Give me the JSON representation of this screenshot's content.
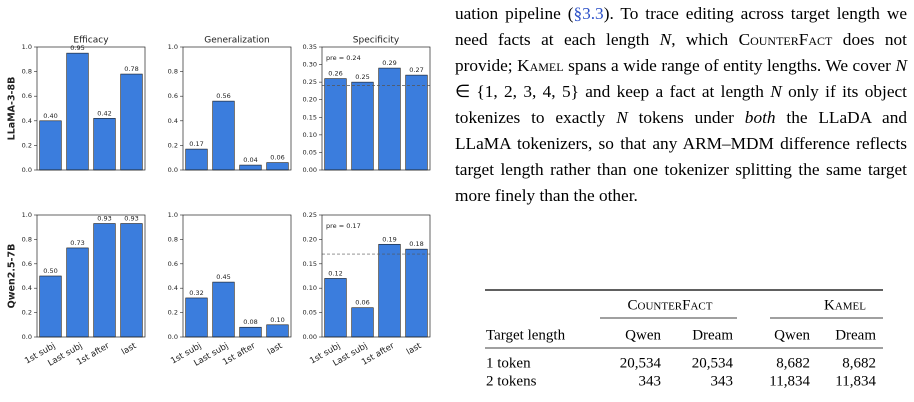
{
  "chart_data": [
    {
      "type": "bar",
      "title": "Efficacy",
      "ylabel": "LLaMA-3-8B",
      "categories": [
        null,
        null,
        null,
        null
      ],
      "values": [
        0.4,
        0.95,
        0.42,
        0.78
      ],
      "value_labels": [
        "0.40",
        "0.95",
        "0.42",
        "0.78"
      ],
      "color": "#3b7ddd",
      "ylim": [
        0,
        1.0
      ],
      "yticks": [
        {
          "value": 0,
          "label": "0.0"
        },
        {
          "value": 0.2,
          "label": "0.2"
        },
        {
          "value": 0.4,
          "label": "0.4"
        },
        {
          "value": 0.6,
          "label": "0.6"
        },
        {
          "value": 0.8,
          "label": "0.8"
        },
        {
          "value": 1.0,
          "label": "1.0"
        }
      ]
    },
    {
      "type": "bar",
      "title": "Generalization",
      "categories": [
        null,
        null,
        null,
        null
      ],
      "values": [
        0.17,
        0.56,
        0.04,
        0.06
      ],
      "value_labels": [
        "0.17",
        "0.56",
        "0.04",
        "0.06"
      ],
      "color": "#3b7ddd",
      "ylim": [
        0,
        1.0
      ],
      "yticks": [
        {
          "value": 0,
          "label": "0.0"
        },
        {
          "value": 0.2,
          "label": "0.2"
        },
        {
          "value": 0.4,
          "label": "0.4"
        },
        {
          "value": 0.6,
          "label": "0.6"
        },
        {
          "value": 0.8,
          "label": "0.8"
        },
        {
          "value": 1.0,
          "label": "1.0"
        }
      ]
    },
    {
      "type": "bar",
      "title": "Specificity",
      "categories": [
        null,
        null,
        null,
        null
      ],
      "values": [
        0.26,
        0.25,
        0.29,
        0.27
      ],
      "value_labels": [
        "0.26",
        "0.25",
        "0.29",
        "0.27"
      ],
      "color": "#3b7ddd",
      "ylim": [
        0,
        0.35
      ],
      "yticks": [
        {
          "value": 0,
          "label": "0.00"
        },
        {
          "value": 0.05,
          "label": "0.05"
        },
        {
          "value": 0.1,
          "label": "0.10"
        },
        {
          "value": 0.15,
          "label": "0.15"
        },
        {
          "value": 0.2,
          "label": "0.20"
        },
        {
          "value": 0.25,
          "label": "0.25"
        },
        {
          "value": 0.3,
          "label": "0.30"
        },
        {
          "value": 0.35,
          "label": "0.35"
        }
      ],
      "reference": {
        "value": 0.24,
        "label": "pre = 0.24"
      }
    },
    {
      "type": "bar",
      "ylabel": "Qwen2.5-7B",
      "categories": [
        "1st subj",
        "Last subj",
        "1st after",
        "last"
      ],
      "values": [
        0.5,
        0.73,
        0.93,
        0.93
      ],
      "value_labels": [
        "0.50",
        "0.73",
        "0.93",
        "0.93"
      ],
      "color": "#3b7ddd",
      "ylim": [
        0,
        1.0
      ],
      "yticks": [
        {
          "value": 0,
          "label": "0.0"
        },
        {
          "value": 0.2,
          "label": "0.2"
        },
        {
          "value": 0.4,
          "label": "0.4"
        },
        {
          "value": 0.6,
          "label": "0.6"
        },
        {
          "value": 0.8,
          "label": "0.8"
        },
        {
          "value": 1.0,
          "label": "1.0"
        }
      ]
    },
    {
      "type": "bar",
      "categories": [
        "1st subj",
        "Last subj",
        "1st after",
        "last"
      ],
      "values": [
        0.32,
        0.45,
        0.08,
        0.1
      ],
      "value_labels": [
        "0.32",
        "0.45",
        "0.08",
        "0.10"
      ],
      "color": "#3b7ddd",
      "ylim": [
        0,
        1.0
      ],
      "yticks": [
        {
          "value": 0,
          "label": "0.0"
        },
        {
          "value": 0.2,
          "label": "0.2"
        },
        {
          "value": 0.4,
          "label": "0.4"
        },
        {
          "value": 0.6,
          "label": "0.6"
        },
        {
          "value": 0.8,
          "label": "0.8"
        },
        {
          "value": 1.0,
          "label": "1.0"
        }
      ]
    },
    {
      "type": "bar",
      "categories": [
        "1st subj",
        "Last subj",
        "1st after",
        "last"
      ],
      "values": [
        0.12,
        0.06,
        0.19,
        0.18
      ],
      "value_labels": [
        "0.12",
        "0.06",
        "0.19",
        "0.18"
      ],
      "color": "#3b7ddd",
      "ylim": [
        0,
        0.25
      ],
      "yticks": [
        {
          "value": 0,
          "label": "0.00"
        },
        {
          "value": 0.05,
          "label": "0.05"
        },
        {
          "value": 0.1,
          "label": "0.10"
        },
        {
          "value": 0.15,
          "label": "0.15"
        },
        {
          "value": 0.2,
          "label": "0.20"
        },
        {
          "value": 0.25,
          "label": "0.25"
        }
      ],
      "reference": {
        "value": 0.17,
        "label": "pre = 0.17"
      }
    }
  ],
  "paragraph": [
    "uation pipeline (",
    "§3.3",
    ").  To trace editing across target length we need facts at each length ",
    "N",
    ", which ",
    "CounterFact",
    " does not provide; ",
    "Kamel",
    " spans a wide range of entity lengths.  We cover ",
    "N",
    " ∈ {1, 2, 3, 4, 5} and keep a fact at length ",
    "N",
    " only if its object tokenizes to exactly ",
    "N",
    " tokens under ",
    "both",
    " the LLaDA and LLaMA tokenizers, so that any ARM–MDM difference reflects target length rather than one tokenizer splitting the same target more finely than the other."
  ],
  "table": {
    "groups": [
      "CounterFact",
      "Kamel"
    ],
    "header": [
      "Target length",
      "Qwen",
      "Dream",
      "Qwen",
      "Dream"
    ],
    "rows": [
      [
        "1 token",
        "20,534",
        "20,534",
        "8,682",
        "8,682"
      ],
      [
        "2 tokens",
        "343",
        "343",
        "11,834",
        "11,834"
      ]
    ]
  }
}
